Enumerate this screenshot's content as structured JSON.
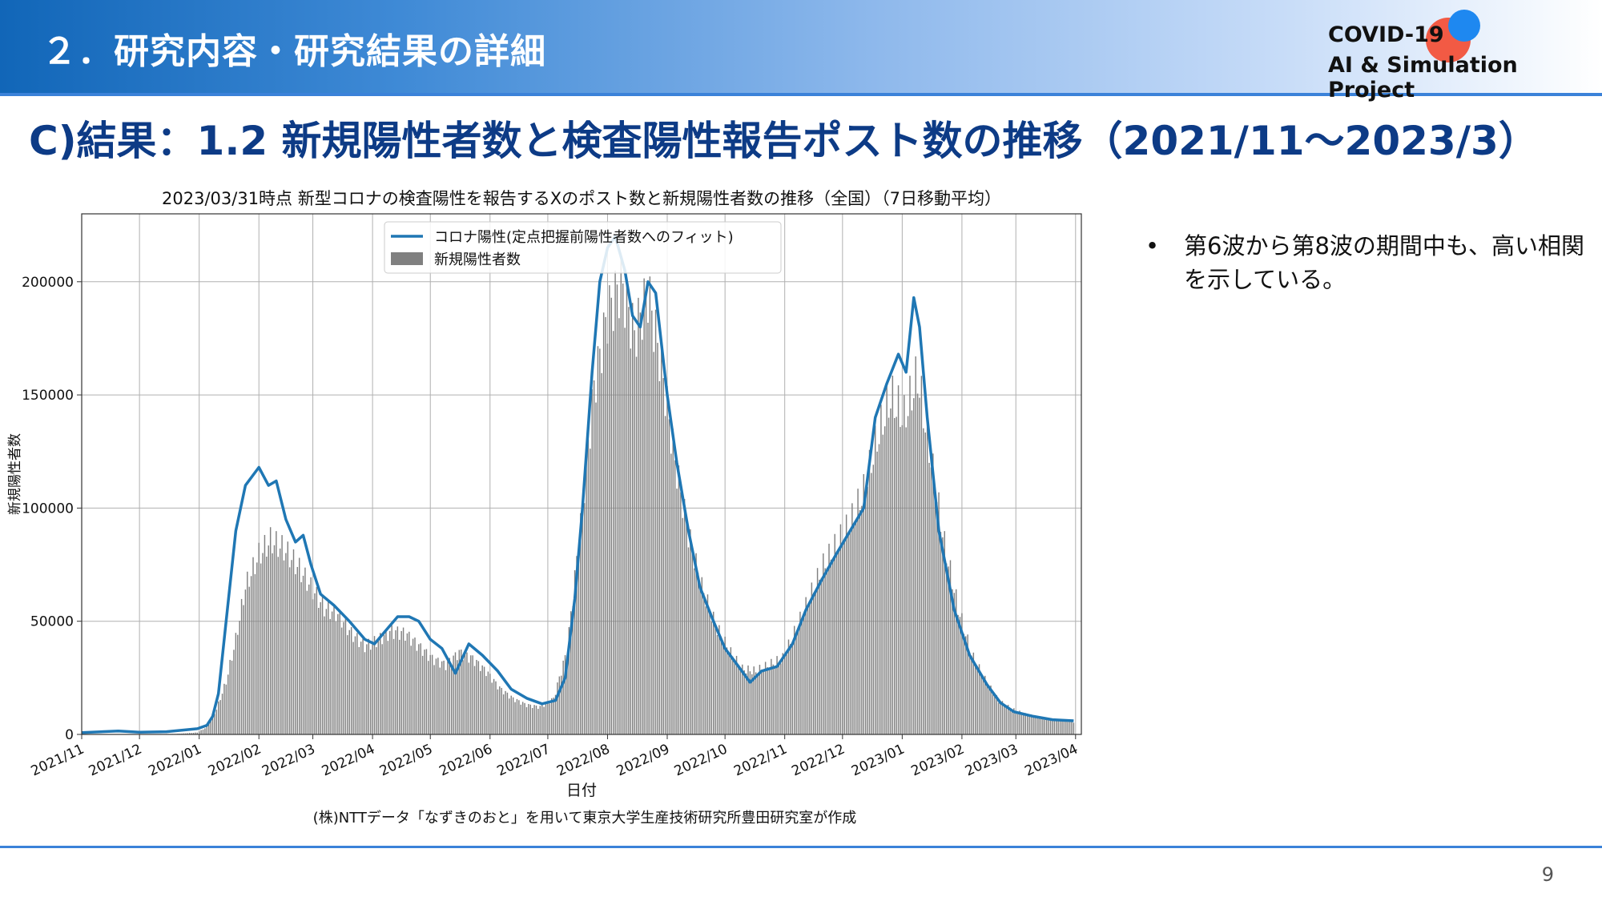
{
  "header": {
    "section_title": "２．研究内容・研究結果の詳細",
    "logo_line1": "COVID-19",
    "logo_line2": "AI & Simulation Project"
  },
  "slide_title": "C)結果：1.2 新規陽性者数と検査陽性報告ポスト数の推移（2021/11〜2023/3）",
  "bullets": [
    "第6波から第8波の期間中も、高い相関を示している。"
  ],
  "page_number": "9",
  "colors": {
    "line": "#1f77b4",
    "bar": "#808080",
    "title": "#0d3b86"
  },
  "chart_data": {
    "type": "bar",
    "title": "2023/03/31時点 新型コロナの検査陽性を報告するXのポスト数と新規陽性者数の推移（全国）（7日移動平均）",
    "xlabel": "日付",
    "ylabel": "新規陽性者数",
    "caption": "(株)NTTデータ「なずきのおと」を用いて東京大学生産技術研究所豊田研究室が作成",
    "xlim": [
      "2021-11-01",
      "2023-04-04"
    ],
    "ylim": [
      0,
      230000
    ],
    "yticks": [
      0,
      50000,
      100000,
      150000,
      200000
    ],
    "xtick_labels": [
      "2021/11",
      "2021/12",
      "2022/01",
      "2022/02",
      "2022/03",
      "2022/04",
      "2022/05",
      "2022/06",
      "2022/07",
      "2022/08",
      "2022/09",
      "2022/10",
      "2022/11",
      "2022/12",
      "2023/01",
      "2023/02",
      "2023/03",
      "2023/04"
    ],
    "grid": true,
    "legend_position": "top-center",
    "series": [
      {
        "name": "コロナ陽性(定点把握前陽性者数へのフィット)",
        "type": "line",
        "points": [
          [
            "2021-11-01",
            800
          ],
          [
            "2021-11-20",
            1500
          ],
          [
            "2021-12-01",
            1000
          ],
          [
            "2021-12-15",
            1200
          ],
          [
            "2021-12-31",
            2500
          ],
          [
            "2022-01-05",
            4000
          ],
          [
            "2022-01-08",
            8000
          ],
          [
            "2022-01-11",
            18000
          ],
          [
            "2022-01-15",
            50000
          ],
          [
            "2022-01-20",
            90000
          ],
          [
            "2022-01-25",
            110000
          ],
          [
            "2022-02-01",
            118000
          ],
          [
            "2022-02-06",
            110000
          ],
          [
            "2022-02-10",
            112000
          ],
          [
            "2022-02-15",
            95000
          ],
          [
            "2022-02-20",
            85000
          ],
          [
            "2022-02-24",
            88000
          ],
          [
            "2022-02-28",
            75000
          ],
          [
            "2022-03-05",
            62000
          ],
          [
            "2022-03-12",
            57000
          ],
          [
            "2022-03-20",
            50000
          ],
          [
            "2022-03-28",
            42000
          ],
          [
            "2022-04-02",
            40000
          ],
          [
            "2022-04-08",
            46000
          ],
          [
            "2022-04-14",
            52000
          ],
          [
            "2022-04-20",
            52000
          ],
          [
            "2022-04-25",
            50000
          ],
          [
            "2022-05-01",
            42000
          ],
          [
            "2022-05-07",
            38000
          ],
          [
            "2022-05-14",
            27000
          ],
          [
            "2022-05-21",
            40000
          ],
          [
            "2022-05-28",
            35000
          ],
          [
            "2022-06-05",
            28000
          ],
          [
            "2022-06-12",
            20000
          ],
          [
            "2022-06-20",
            16000
          ],
          [
            "2022-06-28",
            13500
          ],
          [
            "2022-07-05",
            15000
          ],
          [
            "2022-07-10",
            25000
          ],
          [
            "2022-07-15",
            60000
          ],
          [
            "2022-07-19",
            100000
          ],
          [
            "2022-07-24",
            160000
          ],
          [
            "2022-07-28",
            200000
          ],
          [
            "2022-08-01",
            215000
          ],
          [
            "2022-08-05",
            220000
          ],
          [
            "2022-08-10",
            205000
          ],
          [
            "2022-08-14",
            185000
          ],
          [
            "2022-08-18",
            180000
          ],
          [
            "2022-08-22",
            200000
          ],
          [
            "2022-08-26",
            195000
          ],
          [
            "2022-09-01",
            150000
          ],
          [
            "2022-09-06",
            120000
          ],
          [
            "2022-09-12",
            90000
          ],
          [
            "2022-09-18",
            65000
          ],
          [
            "2022-09-25",
            50000
          ],
          [
            "2022-10-01",
            38000
          ],
          [
            "2022-10-08",
            30000
          ],
          [
            "2022-10-14",
            23000
          ],
          [
            "2022-10-20",
            28000
          ],
          [
            "2022-10-28",
            30000
          ],
          [
            "2022-11-05",
            40000
          ],
          [
            "2022-11-12",
            55000
          ],
          [
            "2022-11-20",
            68000
          ],
          [
            "2022-11-28",
            80000
          ],
          [
            "2022-12-05",
            90000
          ],
          [
            "2022-12-12",
            100000
          ],
          [
            "2022-12-18",
            140000
          ],
          [
            "2022-12-24",
            155000
          ],
          [
            "2022-12-30",
            168000
          ],
          [
            "2023-01-03",
            160000
          ],
          [
            "2023-01-07",
            193000
          ],
          [
            "2023-01-10",
            180000
          ],
          [
            "2023-01-14",
            140000
          ],
          [
            "2023-01-20",
            90000
          ],
          [
            "2023-01-28",
            55000
          ],
          [
            "2023-02-05",
            35000
          ],
          [
            "2023-02-14",
            22000
          ],
          [
            "2023-02-21",
            14000
          ],
          [
            "2023-02-28",
            10000
          ],
          [
            "2023-03-10",
            8000
          ],
          [
            "2023-03-20",
            6500
          ],
          [
            "2023-03-31",
            6000
          ]
        ]
      },
      {
        "name": "新規陽性者数",
        "type": "bar",
        "points": [
          [
            "2021-11-01",
            150
          ],
          [
            "2021-11-15",
            120
          ],
          [
            "2021-12-01",
            120
          ],
          [
            "2021-12-20",
            250
          ],
          [
            "2021-12-31",
            900
          ],
          [
            "2022-01-05",
            3500
          ],
          [
            "2022-01-10",
            12000
          ],
          [
            "2022-01-15",
            25000
          ],
          [
            "2022-01-20",
            45000
          ],
          [
            "2022-01-25",
            70000
          ],
          [
            "2022-02-01",
            85000
          ],
          [
            "2022-02-07",
            92000
          ],
          [
            "2022-02-14",
            88000
          ],
          [
            "2022-02-21",
            80000
          ],
          [
            "2022-02-28",
            70000
          ],
          [
            "2022-03-07",
            60000
          ],
          [
            "2022-03-14",
            57000
          ],
          [
            "2022-03-21",
            48000
          ],
          [
            "2022-03-28",
            42000
          ],
          [
            "2022-04-04",
            45000
          ],
          [
            "2022-04-11",
            49000
          ],
          [
            "2022-04-18",
            48000
          ],
          [
            "2022-04-25",
            42000
          ],
          [
            "2022-05-02",
            36000
          ],
          [
            "2022-05-09",
            33000
          ],
          [
            "2022-05-16",
            39000
          ],
          [
            "2022-05-23",
            36000
          ],
          [
            "2022-05-30",
            30000
          ],
          [
            "2022-06-06",
            22000
          ],
          [
            "2022-06-13",
            17000
          ],
          [
            "2022-06-20",
            14000
          ],
          [
            "2022-06-27",
            13000
          ],
          [
            "2022-07-04",
            17000
          ],
          [
            "2022-07-11",
            40000
          ],
          [
            "2022-07-18",
            100000
          ],
          [
            "2022-07-25",
            165000
          ],
          [
            "2022-08-01",
            200000
          ],
          [
            "2022-08-08",
            215000
          ],
          [
            "2022-08-15",
            190000
          ],
          [
            "2022-08-22",
            210000
          ],
          [
            "2022-08-29",
            175000
          ],
          [
            "2022-09-05",
            130000
          ],
          [
            "2022-09-12",
            95000
          ],
          [
            "2022-09-19",
            70000
          ],
          [
            "2022-09-26",
            52000
          ],
          [
            "2022-10-03",
            40000
          ],
          [
            "2022-10-10",
            31000
          ],
          [
            "2022-10-17",
            30000
          ],
          [
            "2022-10-24",
            33000
          ],
          [
            "2022-10-31",
            36000
          ],
          [
            "2022-11-07",
            50000
          ],
          [
            "2022-11-14",
            65000
          ],
          [
            "2022-11-21",
            80000
          ],
          [
            "2022-11-28",
            90000
          ],
          [
            "2022-12-05",
            100000
          ],
          [
            "2022-12-12",
            115000
          ],
          [
            "2022-12-19",
            140000
          ],
          [
            "2022-12-26",
            160000
          ],
          [
            "2023-01-02",
            150000
          ],
          [
            "2023-01-09",
            170000
          ],
          [
            "2023-01-16",
            130000
          ],
          [
            "2023-01-23",
            90000
          ],
          [
            "2023-01-30",
            60000
          ],
          [
            "2023-02-06",
            38000
          ],
          [
            "2023-02-13",
            26000
          ],
          [
            "2023-02-20",
            16000
          ],
          [
            "2023-02-27",
            12000
          ],
          [
            "2023-03-06",
            9500
          ],
          [
            "2023-03-13",
            8000
          ],
          [
            "2023-03-20",
            7000
          ],
          [
            "2023-03-27",
            6500
          ],
          [
            "2023-03-31",
            6000
          ]
        ]
      }
    ]
  }
}
